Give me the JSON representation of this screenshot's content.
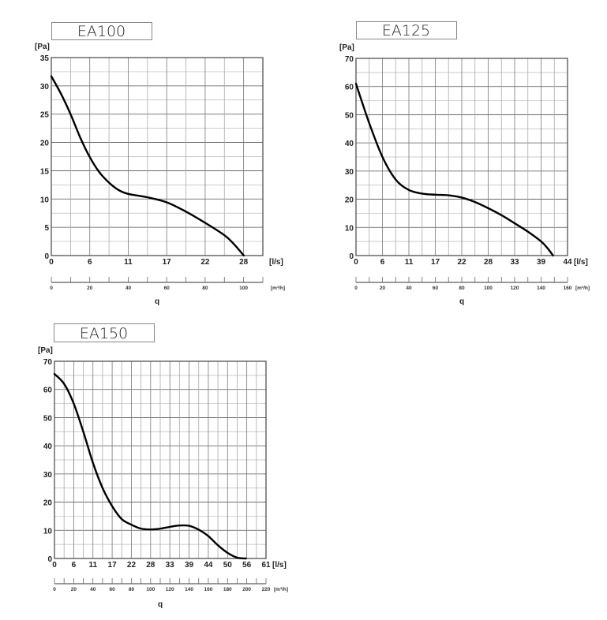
{
  "chart_data": [
    {
      "type": "line",
      "title": "EA100",
      "ylabel": "[Pa]",
      "xlabel_unit": "[l/s]",
      "secondary_xlabel_unit": "[m³/h]",
      "axis_name": "q",
      "xlim_m3h": [
        0,
        110
      ],
      "ylim": [
        0,
        35
      ],
      "y_major": 5,
      "y_minor": 2.5,
      "x_grid_step_m3h": 10,
      "grid": true,
      "y_ticks": [
        "0",
        "5",
        "10",
        "15",
        "20",
        "25",
        "30",
        "35"
      ],
      "x_ticks_ls": [
        "0",
        "6",
        "11",
        "17",
        "22",
        "28"
      ],
      "x_ticks_m3h": [
        "0",
        "20",
        "40",
        "60",
        "80",
        "100"
      ],
      "line_color": "#000000",
      "series": [
        {
          "x": [
            0,
            1.4,
            2.78,
            4.2,
            5.56,
            6.9,
            8.33,
            9.7,
            11.1,
            13.9,
            16.7,
            19.4,
            22.2,
            25,
            26.4,
            27.8
          ],
          "y": [
            31.7,
            28.6,
            25,
            20.8,
            17.4,
            14.8,
            12.9,
            11.6,
            10.9,
            10.3,
            9.4,
            7.8,
            5.8,
            3.6,
            2.0,
            0
          ]
        }
      ]
    },
    {
      "type": "line",
      "title": "EA125",
      "ylabel": "[Pa]",
      "xlabel_unit": "[l/s]",
      "secondary_xlabel_unit": "[m³/h]",
      "axis_name": "q",
      "xlim_m3h": [
        0,
        160
      ],
      "ylim": [
        0,
        70
      ],
      "y_major": 10,
      "y_minor": 5,
      "x_grid_step_m3h": 10,
      "grid": true,
      "y_ticks": [
        "0",
        "10",
        "20",
        "30",
        "40",
        "50",
        "60",
        "70"
      ],
      "x_ticks_ls": [
        "0",
        "6",
        "11",
        "17",
        "22",
        "28",
        "33",
        "39",
        "44"
      ],
      "x_ticks_m3h": [
        "0",
        "20",
        "40",
        "60",
        "80",
        "100",
        "120",
        "140",
        "160"
      ],
      "line_color": "#000000",
      "series": [
        {
          "x": [
            0,
            2.78,
            5.56,
            8.33,
            11.1,
            13.9,
            16.7,
            19.4,
            22.2,
            25,
            27.8,
            30.6,
            33.3,
            36.1,
            38.9,
            40.3,
            41.4
          ],
          "y": [
            61,
            47,
            35,
            27,
            23.3,
            22,
            21.6,
            21.4,
            20.6,
            19,
            16.8,
            14.3,
            11.5,
            8.5,
            5,
            2.5,
            0
          ]
        }
      ]
    },
    {
      "type": "line",
      "title": "EA150",
      "ylabel": "[Pa]",
      "xlabel_unit": "[l/s]",
      "secondary_xlabel_unit": "[m³/h]",
      "axis_name": "q",
      "xlim_m3h": [
        0,
        220
      ],
      "ylim": [
        0,
        70
      ],
      "y_major": 10,
      "y_minor": 5,
      "x_grid_step_m3h": 10,
      "grid": true,
      "y_ticks": [
        "0",
        "10",
        "20",
        "30",
        "40",
        "50",
        "60",
        "70"
      ],
      "x_ticks_ls": [
        "0",
        "6",
        "11",
        "17",
        "22",
        "28",
        "33",
        "39",
        "44",
        "50",
        "56",
        "61"
      ],
      "x_ticks_m3h": [
        "0",
        "20",
        "40",
        "60",
        "80",
        "100",
        "120",
        "140",
        "160",
        "180",
        "200",
        "220"
      ],
      "line_color": "#000000",
      "series": [
        {
          "x": [
            0,
            2.78,
            5.56,
            8.33,
            11.1,
            13.9,
            16.7,
            19.4,
            22.2,
            25,
            27.8,
            30.6,
            33.3,
            36.1,
            38.9,
            41.7,
            44.4,
            47.2,
            50,
            52.8,
            55.3
          ],
          "y": [
            65.5,
            62,
            55,
            45,
            34,
            25,
            18.5,
            14,
            12,
            10.6,
            10.3,
            10.6,
            11.2,
            11.7,
            11.6,
            10.2,
            8,
            4.7,
            2,
            0.3,
            0
          ]
        }
      ]
    }
  ]
}
